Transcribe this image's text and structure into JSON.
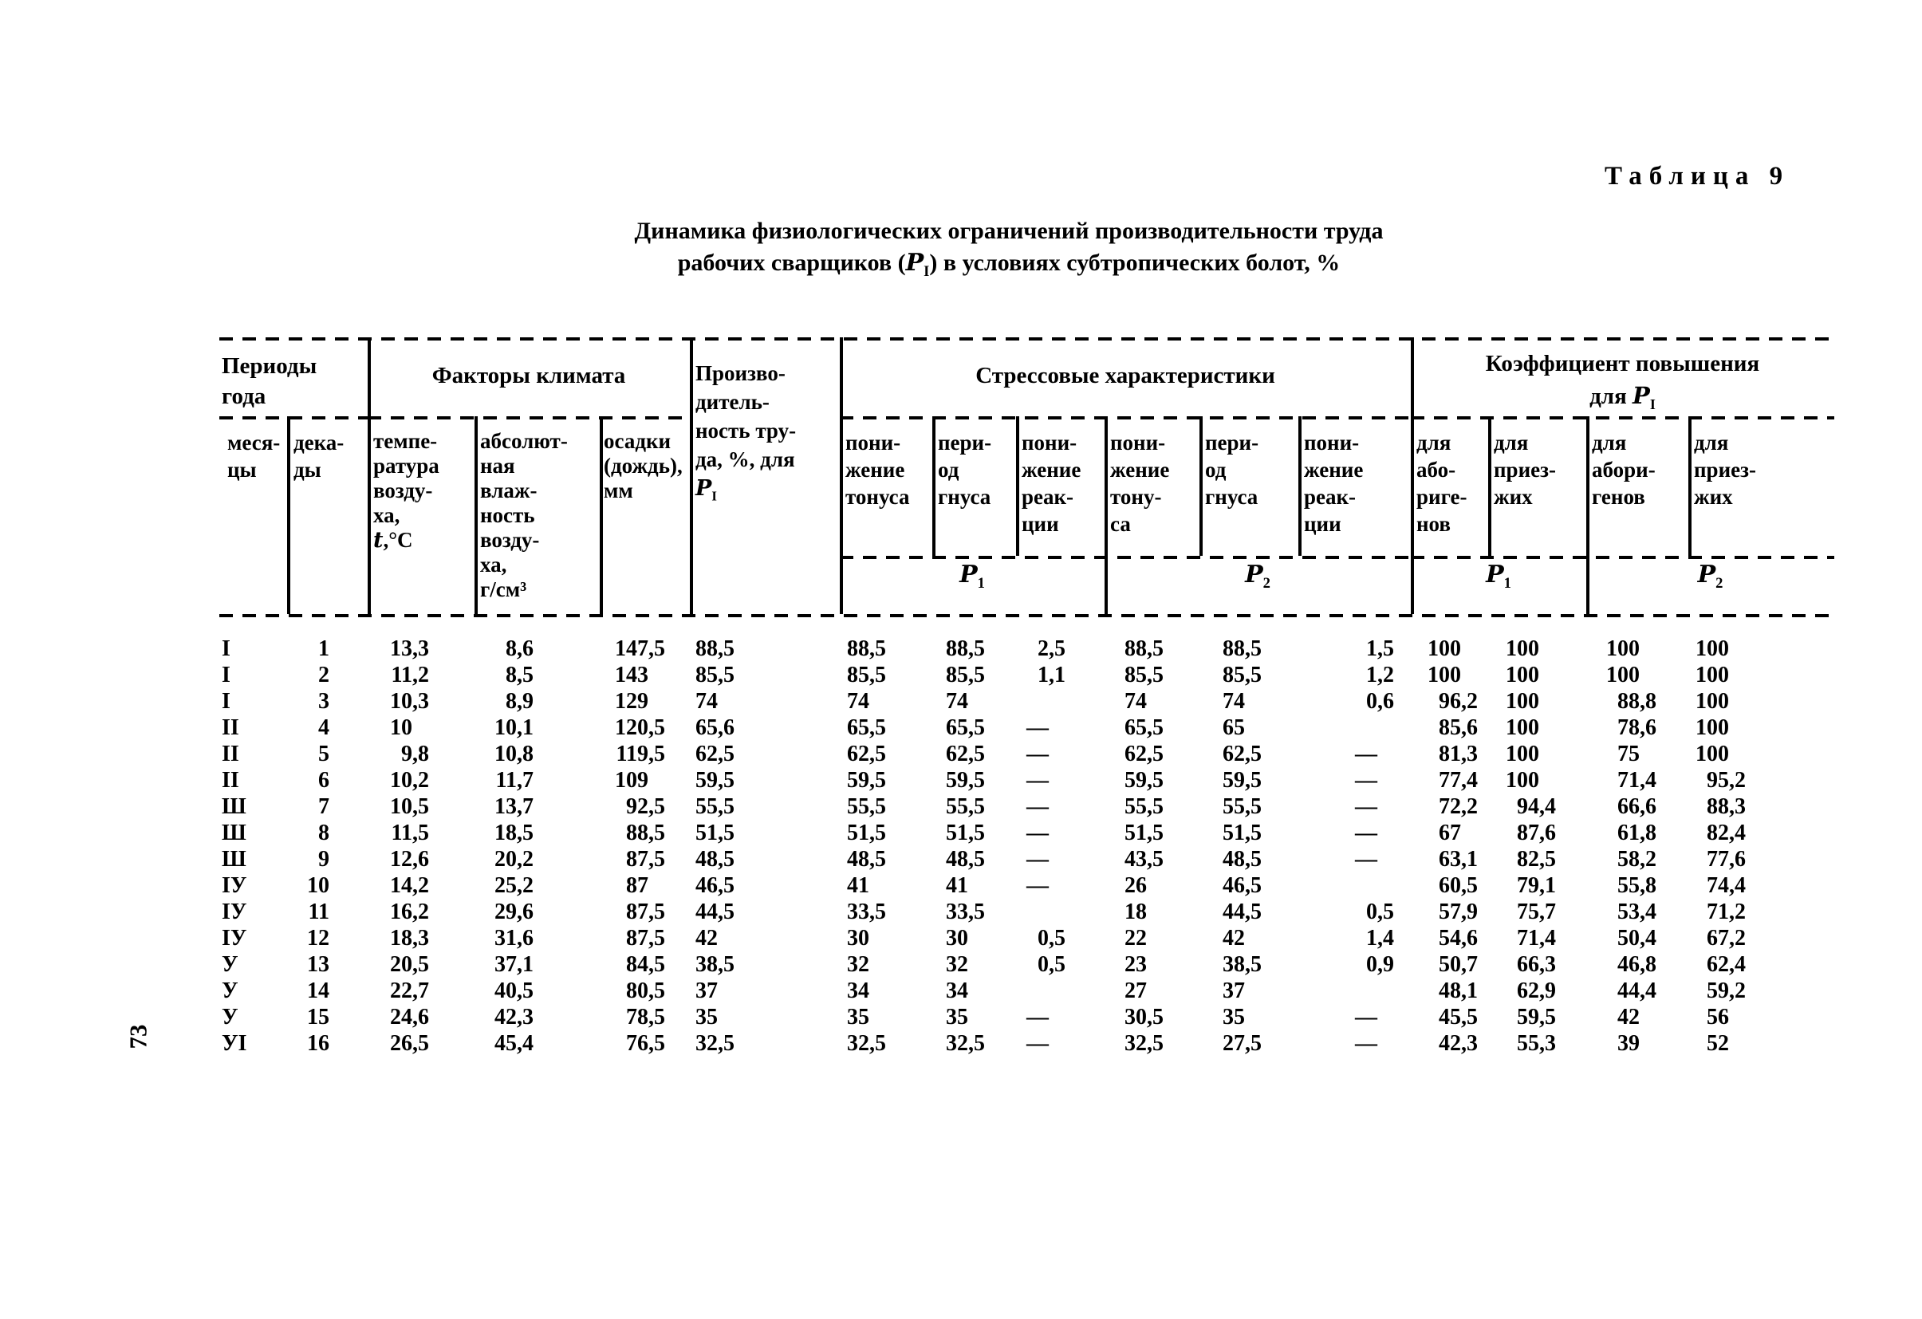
{
  "page_number": "73",
  "table_label": "Таблица 9",
  "title": {
    "line1": "Динамика физиологических ограничений производительности труда",
    "line2": "рабочих сварщиков (Р_{I}) в условиях субтропических болот, %"
  },
  "header": {
    "periods_group": "Периоды\nгода",
    "months": "меся-\nцы",
    "decades": "дека-\nды",
    "climate_group": "Факторы климата",
    "temperature": "темпе-\nратура\nвозду-\nха,\n{i:t},°С",
    "humidity": "абсолют-\nная\nвлаж-\nность\nвозду-\nха,\nг/см³",
    "precipitation": "осадки\n(дождь),\nмм",
    "productivity": "Произво-\nдитель-\nность тру-\nда, %, для\nР_{I}",
    "stress_group": "Стрессовые характеристики",
    "stress_cols": [
      "пони-\nжение\nтонуса",
      "пери-\nод\nгнуса",
      "пони-\nжение\nреак-\nции",
      "пони-\nжение\nтону-\nса",
      "пери-\nод\nгнуса",
      "пони-\nжение\nреак-\nции"
    ],
    "coef_group": "Коэффициент повышения\nдля Р_{I}",
    "coef_cols": [
      "для\nабо-\nриге-\nнов",
      "для\nприез-\nжих",
      "для\nабори-\nгенов",
      "для\nприез-\nжих"
    ],
    "p_labels": [
      "Р_{1}",
      "Р_{2}",
      "Р_{1}",
      "Р_{2}"
    ]
  },
  "rows": [
    [
      "I",
      "1",
      "13,3",
      "8,6",
      "147,5",
      "88,5",
      "88,5",
      "88,5",
      "2,5",
      "88,5",
      "88,5",
      "1,5",
      "100",
      "100",
      "100",
      "100"
    ],
    [
      "I",
      "2",
      "11,2",
      "8,5",
      "143",
      "85,5",
      "85,5",
      "85,5",
      "1,1",
      "85,5",
      "85,5",
      "1,2",
      "100",
      "100",
      "100",
      "100"
    ],
    [
      "I",
      "3",
      "10,3",
      "8,9",
      "129",
      "74",
      "74",
      "74",
      "",
      "74",
      "74",
      "0,6",
      "96,2",
      "100",
      "88,8",
      "100"
    ],
    [
      "II",
      "4",
      "10",
      "10,1",
      "120,5",
      "65,6",
      "65,5",
      "65,5",
      "—",
      "65,5",
      "65",
      "",
      "85,6",
      "100",
      "78,6",
      "100"
    ],
    [
      "II",
      "5",
      "9,8",
      "10,8",
      "119,5",
      "62,5",
      "62,5",
      "62,5",
      "—",
      "62,5",
      "62,5",
      "—",
      "81,3",
      "100",
      "75",
      "100"
    ],
    [
      "II",
      "6",
      "10,2",
      "11,7",
      "109",
      "59,5",
      "59,5",
      "59,5",
      "—",
      "59,5",
      "59,5",
      "—",
      "77,4",
      "100",
      "71,4",
      "95,2"
    ],
    [
      "Ш",
      "7",
      "10,5",
      "13,7",
      "92,5",
      "55,5",
      "55,5",
      "55,5",
      "—",
      "55,5",
      "55,5",
      "—",
      "72,2",
      "94,4",
      "66,6",
      "88,3"
    ],
    [
      "Ш",
      "8",
      "11,5",
      "18,5",
      "88,5",
      "51,5",
      "51,5",
      "51,5",
      "—",
      "51,5",
      "51,5",
      "—",
      "67",
      "87,6",
      "61,8",
      "82,4"
    ],
    [
      "Ш",
      "9",
      "12,6",
      "20,2",
      "87,5",
      "48,5",
      "48,5",
      "48,5",
      "—",
      "43,5",
      "48,5",
      "—",
      "63,1",
      "82,5",
      "58,2",
      "77,6"
    ],
    [
      "IУ",
      "10",
      "14,2",
      "25,2",
      "87",
      "46,5",
      "41",
      "41",
      "—",
      "26",
      "46,5",
      "",
      "60,5",
      "79,1",
      "55,8",
      "74,4"
    ],
    [
      "IУ",
      "11",
      "16,2",
      "29,6",
      "87,5",
      "44,5",
      "33,5",
      "33,5",
      "",
      "18",
      "44,5",
      "0,5",
      "57,9",
      "75,7",
      "53,4",
      "71,2"
    ],
    [
      "IУ",
      "12",
      "18,3",
      "31,6",
      "87,5",
      "42",
      "30",
      "30",
      "0,5",
      "22",
      "42",
      "1,4",
      "54,6",
      "71,4",
      "50,4",
      "67,2"
    ],
    [
      "У",
      "13",
      "20,5",
      "37,1",
      "84,5",
      "38,5",
      "32",
      "32",
      "0,5",
      "23",
      "38,5",
      "0,9",
      "50,7",
      "66,3",
      "46,8",
      "62,4"
    ],
    [
      "У",
      "14",
      "22,7",
      "40,5",
      "80,5",
      "37",
      "34",
      "34",
      "",
      "27",
      "37",
      "",
      "48,1",
      "62,9",
      "44,4",
      "59,2"
    ],
    [
      "У",
      "15",
      "24,6",
      "42,3",
      "78,5",
      "35",
      "35",
      "35",
      "—",
      "30,5",
      "35",
      "—",
      "45,5",
      "59,5",
      "42",
      "56"
    ],
    [
      "УI",
      "16",
      "26,5",
      "45,4",
      "76,5",
      "32,5",
      "32,5",
      "32,5",
      "—",
      "32,5",
      "27,5",
      "—",
      "42,3",
      "55,3",
      "39",
      "52"
    ]
  ]
}
